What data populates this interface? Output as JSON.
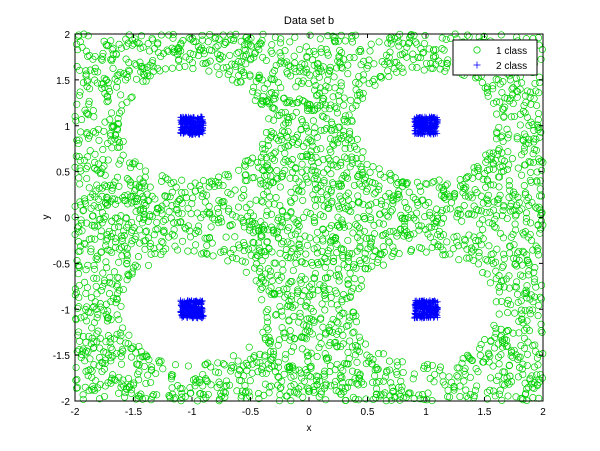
{
  "chart_data": {
    "type": "scatter",
    "title": "Data set b",
    "xlabel": "x",
    "ylabel": "y",
    "xlim": [
      -2,
      2
    ],
    "ylim": [
      -2,
      2
    ],
    "xticks": [
      "-2",
      "-1.5",
      "-1",
      "-0.5",
      "0",
      "0.5",
      "1",
      "1.5",
      "2"
    ],
    "yticks": [
      "-2",
      "-1.5",
      "-1",
      "-0.5",
      "0",
      "0.5",
      "1",
      "1.5",
      "2"
    ],
    "grid": false,
    "legend_position": "top-right",
    "series": [
      {
        "name": "1 class",
        "marker": "circle",
        "color": "#00d000",
        "distribution": "uniform over the square, excluding discs of radius 0.6 around (±1, ±1)",
        "point_count": 3200
      },
      {
        "name": "2 class",
        "marker": "plus",
        "color": "#0000ff",
        "distribution": "dense squares of half-width 0.1 centred at (±1, ±1)",
        "clusters": [
          [
            -1,
            1
          ],
          [
            1,
            1
          ],
          [
            -1,
            -1
          ],
          [
            1,
            -1
          ]
        ],
        "points_per_cluster": 220
      }
    ]
  }
}
